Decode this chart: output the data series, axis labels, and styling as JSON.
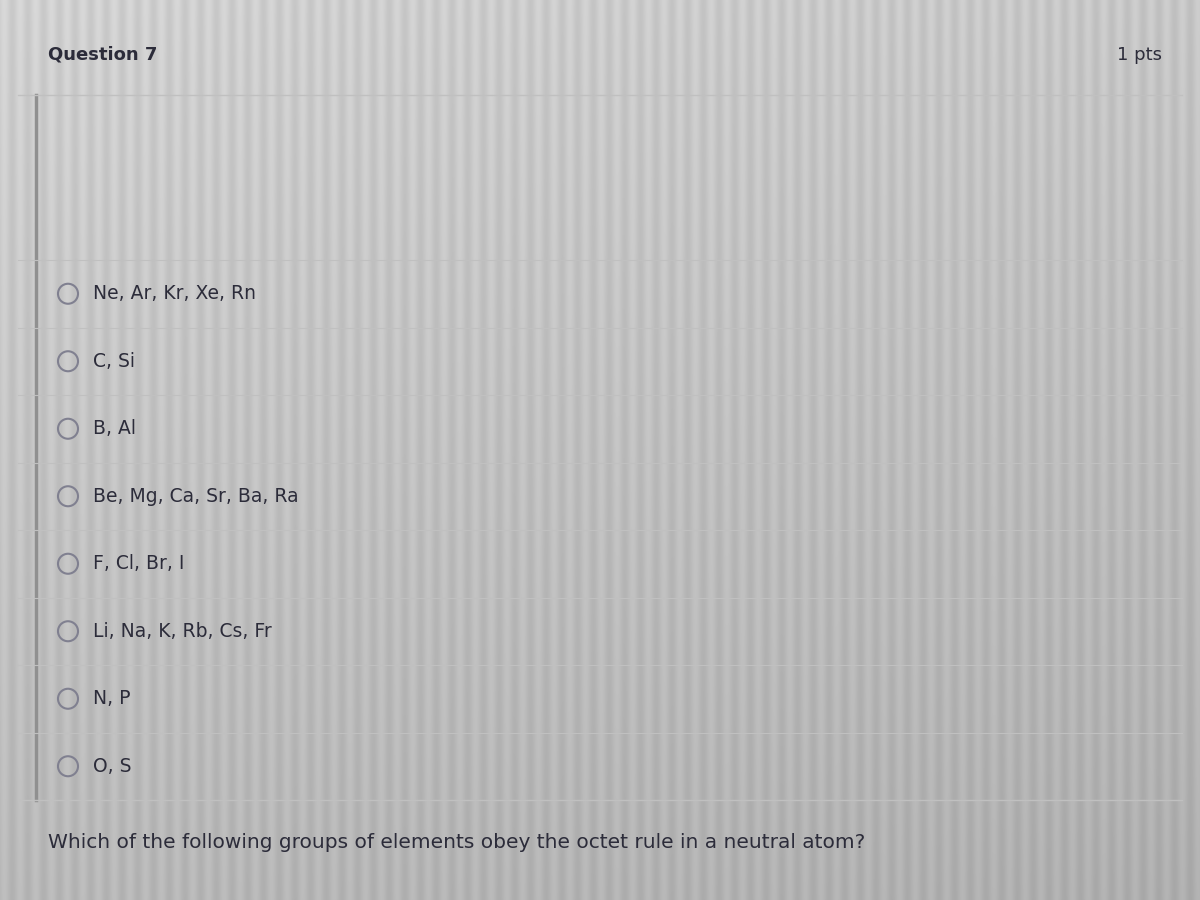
{
  "title": "Which of the following groups of elements obey the octet rule in a neutral atom?",
  "options": [
    "O, S",
    "N, P",
    "Li, Na, K, Rb, Cs, Fr",
    "F, Cl, Br, I",
    "Be, Mg, Ca, Sr, Ba, Ra",
    "B, Al",
    "C, Si",
    "Ne, Ar, Kr, Xe, Rn"
  ],
  "bg_color_top": "#d8d8d8",
  "bg_color_bottom": "#b8b8b8",
  "card_bg": "#d2d2d2",
  "line_color": "#c0c0c0",
  "left_border_color": "#909090",
  "text_color": "#2c2c3a",
  "title_fontsize": 14.5,
  "option_fontsize": 13.5,
  "footer_text": "Question 7",
  "footer_pts": "1 pts",
  "footer_fontsize": 13,
  "circle_color": "#808090",
  "stripe_color_light": "#d5d5d5",
  "stripe_color_dark": "#c8c8c8"
}
